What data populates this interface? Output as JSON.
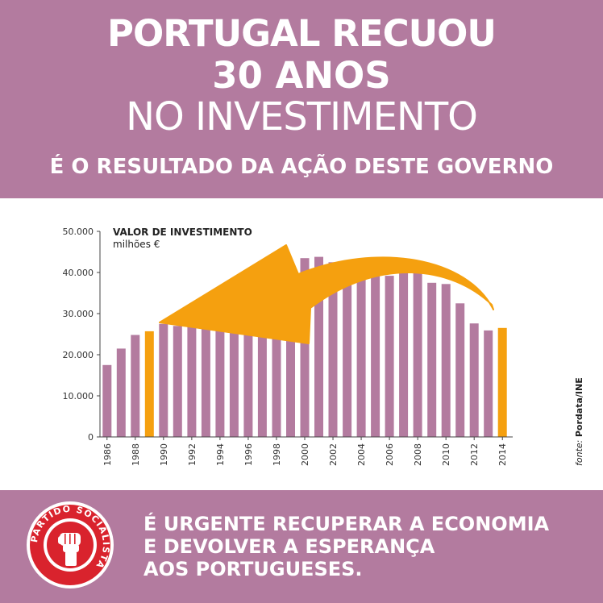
{
  "header": {
    "line1": "PORTUGAL RECUOU",
    "line2": "30 ANOS",
    "line3": "NO INVESTIMENTO",
    "subtitle": "É O RESULTADO DA AÇÃO DESTE GOVERNO"
  },
  "footer": {
    "line1": "É URGENTE RECUPERAR A ECONOMIA",
    "line2": "E DEVOLVER A ESPERANÇA",
    "line3": "AOS PORTUGUESES."
  },
  "logo": {
    "text": "PARTIDO SOCIALISTA"
  },
  "colors": {
    "band": "#b37b9f",
    "bar": "#b37b9f",
    "highlight": "#f5a00f",
    "logo_red": "#d9232d"
  },
  "chart_data": {
    "type": "bar",
    "title": "VALOR DE INVESTIMENTO",
    "subtitle": "milhões €",
    "source_label": "fonte:",
    "source": "Pordata/INE",
    "x": [
      1986,
      1987,
      1988,
      1989,
      1990,
      1991,
      1992,
      1993,
      1994,
      1995,
      1996,
      1997,
      1998,
      1999,
      2000,
      2001,
      2002,
      2003,
      2004,
      2005,
      2006,
      2007,
      2008,
      2009,
      2010,
      2011,
      2012,
      2013,
      2014
    ],
    "values": [
      17500,
      21500,
      24800,
      25700,
      27500,
      27000,
      28500,
      28000,
      28800,
      29500,
      31000,
      32200,
      34800,
      41900,
      43500,
      43800,
      42500,
      39300,
      39400,
      39400,
      39200,
      40300,
      40500,
      37500,
      37200,
      32500,
      27600,
      25900,
      26500
    ],
    "highlight_years": [
      1989,
      2014
    ],
    "tick_labels_x": [
      "1986",
      "1988",
      "1990",
      "1992",
      "1994",
      "1996",
      "1998",
      "2000",
      "2002",
      "2004",
      "2006",
      "2008",
      "2010",
      "2012",
      "2014"
    ],
    "tick_labels_y": [
      "0",
      "10.000",
      "20.000",
      "30.000",
      "40.000",
      "50.000"
    ],
    "ylim": [
      0,
      50000
    ],
    "grid": false,
    "legend": "none",
    "annotation": "arrow from 2014 back to 1989"
  }
}
